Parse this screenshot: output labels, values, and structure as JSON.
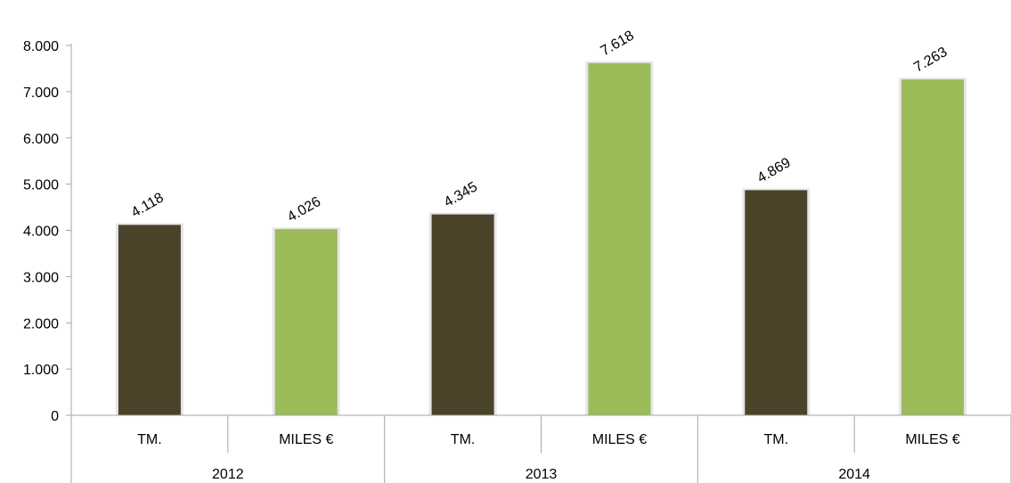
{
  "chart_data": {
    "type": "bar",
    "title": "",
    "xlabel": "",
    "ylabel": "",
    "ylim": [
      0,
      8000
    ],
    "yticks": [
      0,
      1000,
      2000,
      3000,
      4000,
      5000,
      6000,
      7000,
      8000
    ],
    "ytick_labels": [
      "0",
      "1.000",
      "2.000",
      "3.000",
      "4.000",
      "5.000",
      "6.000",
      "7.000",
      "8.000"
    ],
    "grid": false,
    "legend": "none",
    "groups": [
      "2012",
      "2013",
      "2014"
    ],
    "categories": [
      {
        "group": "2012",
        "label": "TM.",
        "value": 4118,
        "value_label": "4.118",
        "color": "#4a432a"
      },
      {
        "group": "2012",
        "label": "MILES €",
        "value": 4026,
        "value_label": "4.026",
        "color": "#9bbb59"
      },
      {
        "group": "2013",
        "label": "TM.",
        "value": 4345,
        "value_label": "4.345",
        "color": "#4a432a"
      },
      {
        "group": "2013",
        "label": "MILES €",
        "value": 7618,
        "value_label": "7.618",
        "color": "#9bbb59"
      },
      {
        "group": "2014",
        "label": "TM.",
        "value": 4869,
        "value_label": "4.869",
        "color": "#4a432a"
      },
      {
        "group": "2014",
        "label": "MILES €",
        "value": 7263,
        "value_label": "7.263",
        "color": "#9bbb59"
      }
    ]
  }
}
